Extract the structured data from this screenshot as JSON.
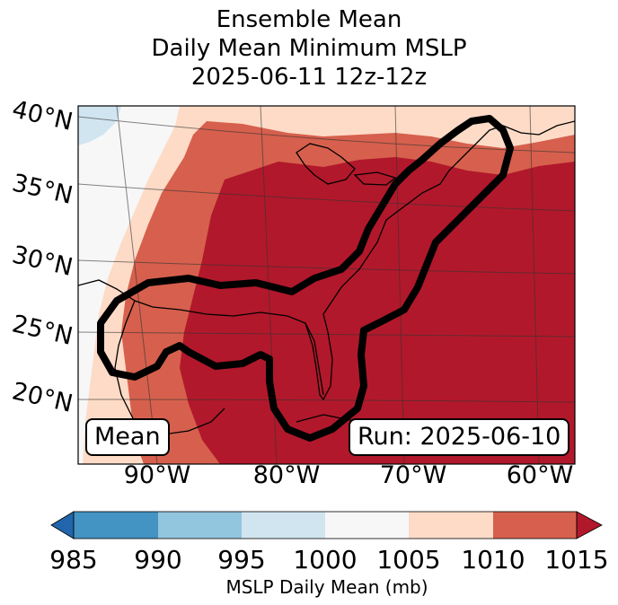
{
  "title": {
    "line1": "Ensemble Mean",
    "line2": "Daily Mean Minimum MSLP",
    "line3": "2025-06-11 12z-12z"
  },
  "map": {
    "lat_labels": [
      "40°N",
      "35°N",
      "30°N",
      "25°N",
      "20°N"
    ],
    "lon_labels": [
      "90°W",
      "80°W",
      "70°W",
      "60°W"
    ],
    "mean_label": "Mean",
    "run_label": "Run: 2025-06-10",
    "colors": {
      "c1000_1005": "#f7f7f7",
      "c995_1000": "#d1e5f0",
      "c1005_1010": "#fddbc7",
      "c1010_1015": "#d6604d",
      "c1015_plus": "#b2182b",
      "land_line": "#000000",
      "contour": "#000000"
    }
  },
  "colorbar": {
    "ticks": [
      "985",
      "990",
      "995",
      "1000",
      "1005",
      "1010",
      "1015"
    ],
    "label": "MSLP Daily Mean (mb)",
    "colors": [
      "#2166ac",
      "#4393c3",
      "#92c5de",
      "#d1e5f0",
      "#f7f7f7",
      "#fddbc7",
      "#d6604d",
      "#b2182b"
    ]
  }
}
